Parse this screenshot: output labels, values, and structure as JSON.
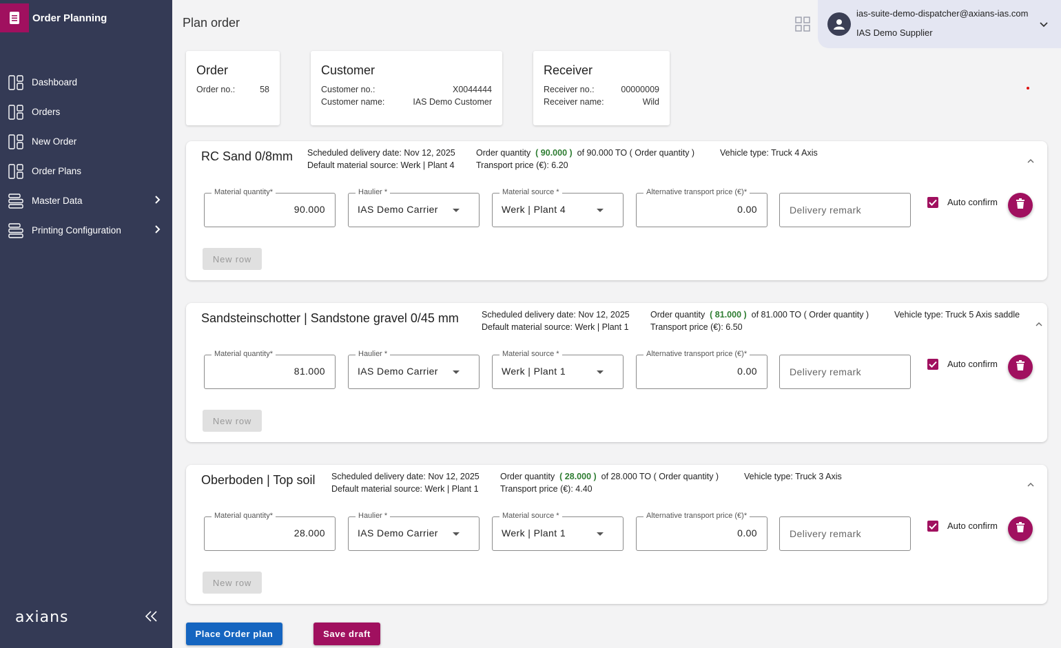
{
  "app": {
    "title": "Order Planning",
    "brand": "axians"
  },
  "nav": [
    {
      "label": "Dashboard",
      "icon": "dashboard-icon",
      "has_children": false
    },
    {
      "label": "Orders",
      "icon": "dashboard-icon",
      "has_children": false
    },
    {
      "label": "New Order",
      "icon": "dashboard-icon",
      "has_children": false
    },
    {
      "label": "Order Plans",
      "icon": "dashboard-icon",
      "has_children": false
    },
    {
      "label": "Master Data",
      "icon": "list-icon",
      "has_children": true
    },
    {
      "label": "Printing Configuration",
      "icon": "list-icon",
      "has_children": true
    }
  ],
  "header": {
    "page_title": "Plan order",
    "user_email": "ias-suite-demo-dispatcher@axians-ias.com",
    "user_org": "IAS Demo Supplier"
  },
  "order_card": {
    "title": "Order",
    "order_no_label": "Order no.:",
    "order_no": "58"
  },
  "customer_card": {
    "title": "Customer",
    "no_label": "Customer no.:",
    "no": "X0044444",
    "name_label": "Customer name:",
    "name": "IAS Demo Customer"
  },
  "receiver_card": {
    "title": "Receiver",
    "no_label": "Receiver no.:",
    "no": "00000009",
    "name_label": "Receiver name:",
    "name": "Wild"
  },
  "labels": {
    "material_quantity": "Material quantity*",
    "haulier": "Haulier *",
    "material_source": "Material source *",
    "alt_price": "Alternative transport price (€)*",
    "delivery_remark": "Delivery remark",
    "auto_confirm": "Auto confirm",
    "new_row": "New row",
    "order_quantity": "Order quantity",
    "order_quantity_suffix_paren": "( Order quantity )"
  },
  "materials": [
    {
      "name": "RC Sand 0/8mm",
      "scheduled": "Scheduled delivery date: Nov 12, 2025",
      "default_source": "Default material source: Werk | Plant 4",
      "planned_qty": "( 90.000 )",
      "of_total": "of 90.000 TO ( Order quantity )",
      "transport_price": "Transport price (€): 6.20",
      "vehicle": "Vehicle type: Truck 4 Axis",
      "row": {
        "quantity": "90.000",
        "haulier": "IAS Demo Carrier",
        "source": "Werk | Plant 4",
        "alt_price": "0.00",
        "auto_confirm": true
      }
    },
    {
      "name": "Sandsteinschotter | Sandstone gravel 0/45 mm",
      "scheduled": "Scheduled delivery date: Nov 12, 2025",
      "default_source": "Default material source: Werk | Plant 1",
      "planned_qty": "( 81.000 )",
      "of_total": "of 81.000 TO ( Order quantity )",
      "transport_price": "Transport price (€): 6.50",
      "vehicle": "Vehicle type: Truck 5 Axis saddle",
      "row": {
        "quantity": "81.000",
        "haulier": "IAS Demo Carrier",
        "source": "Werk | Plant 1",
        "alt_price": "0.00",
        "auto_confirm": true
      }
    },
    {
      "name": "Oberboden | Top soil",
      "scheduled": "Scheduled delivery date: Nov 12, 2025",
      "default_source": "Default material source: Werk | Plant 1",
      "planned_qty": "( 28.000 )",
      "of_total": "of 28.000 TO ( Order quantity )",
      "transport_price": "Transport price (€): 4.40",
      "vehicle": "Vehicle type: Truck 3 Axis",
      "row": {
        "quantity": "28.000",
        "haulier": "IAS Demo Carrier",
        "source": "Werk | Plant 1",
        "alt_price": "0.00",
        "auto_confirm": true
      }
    }
  ],
  "actions": {
    "place": "Place Order plan",
    "draft": "Save draft"
  },
  "colors": {
    "sidebar": "#343a55",
    "accent": "#a0105f",
    "primary": "#1565c0",
    "qty_green": "#2e7d32"
  }
}
